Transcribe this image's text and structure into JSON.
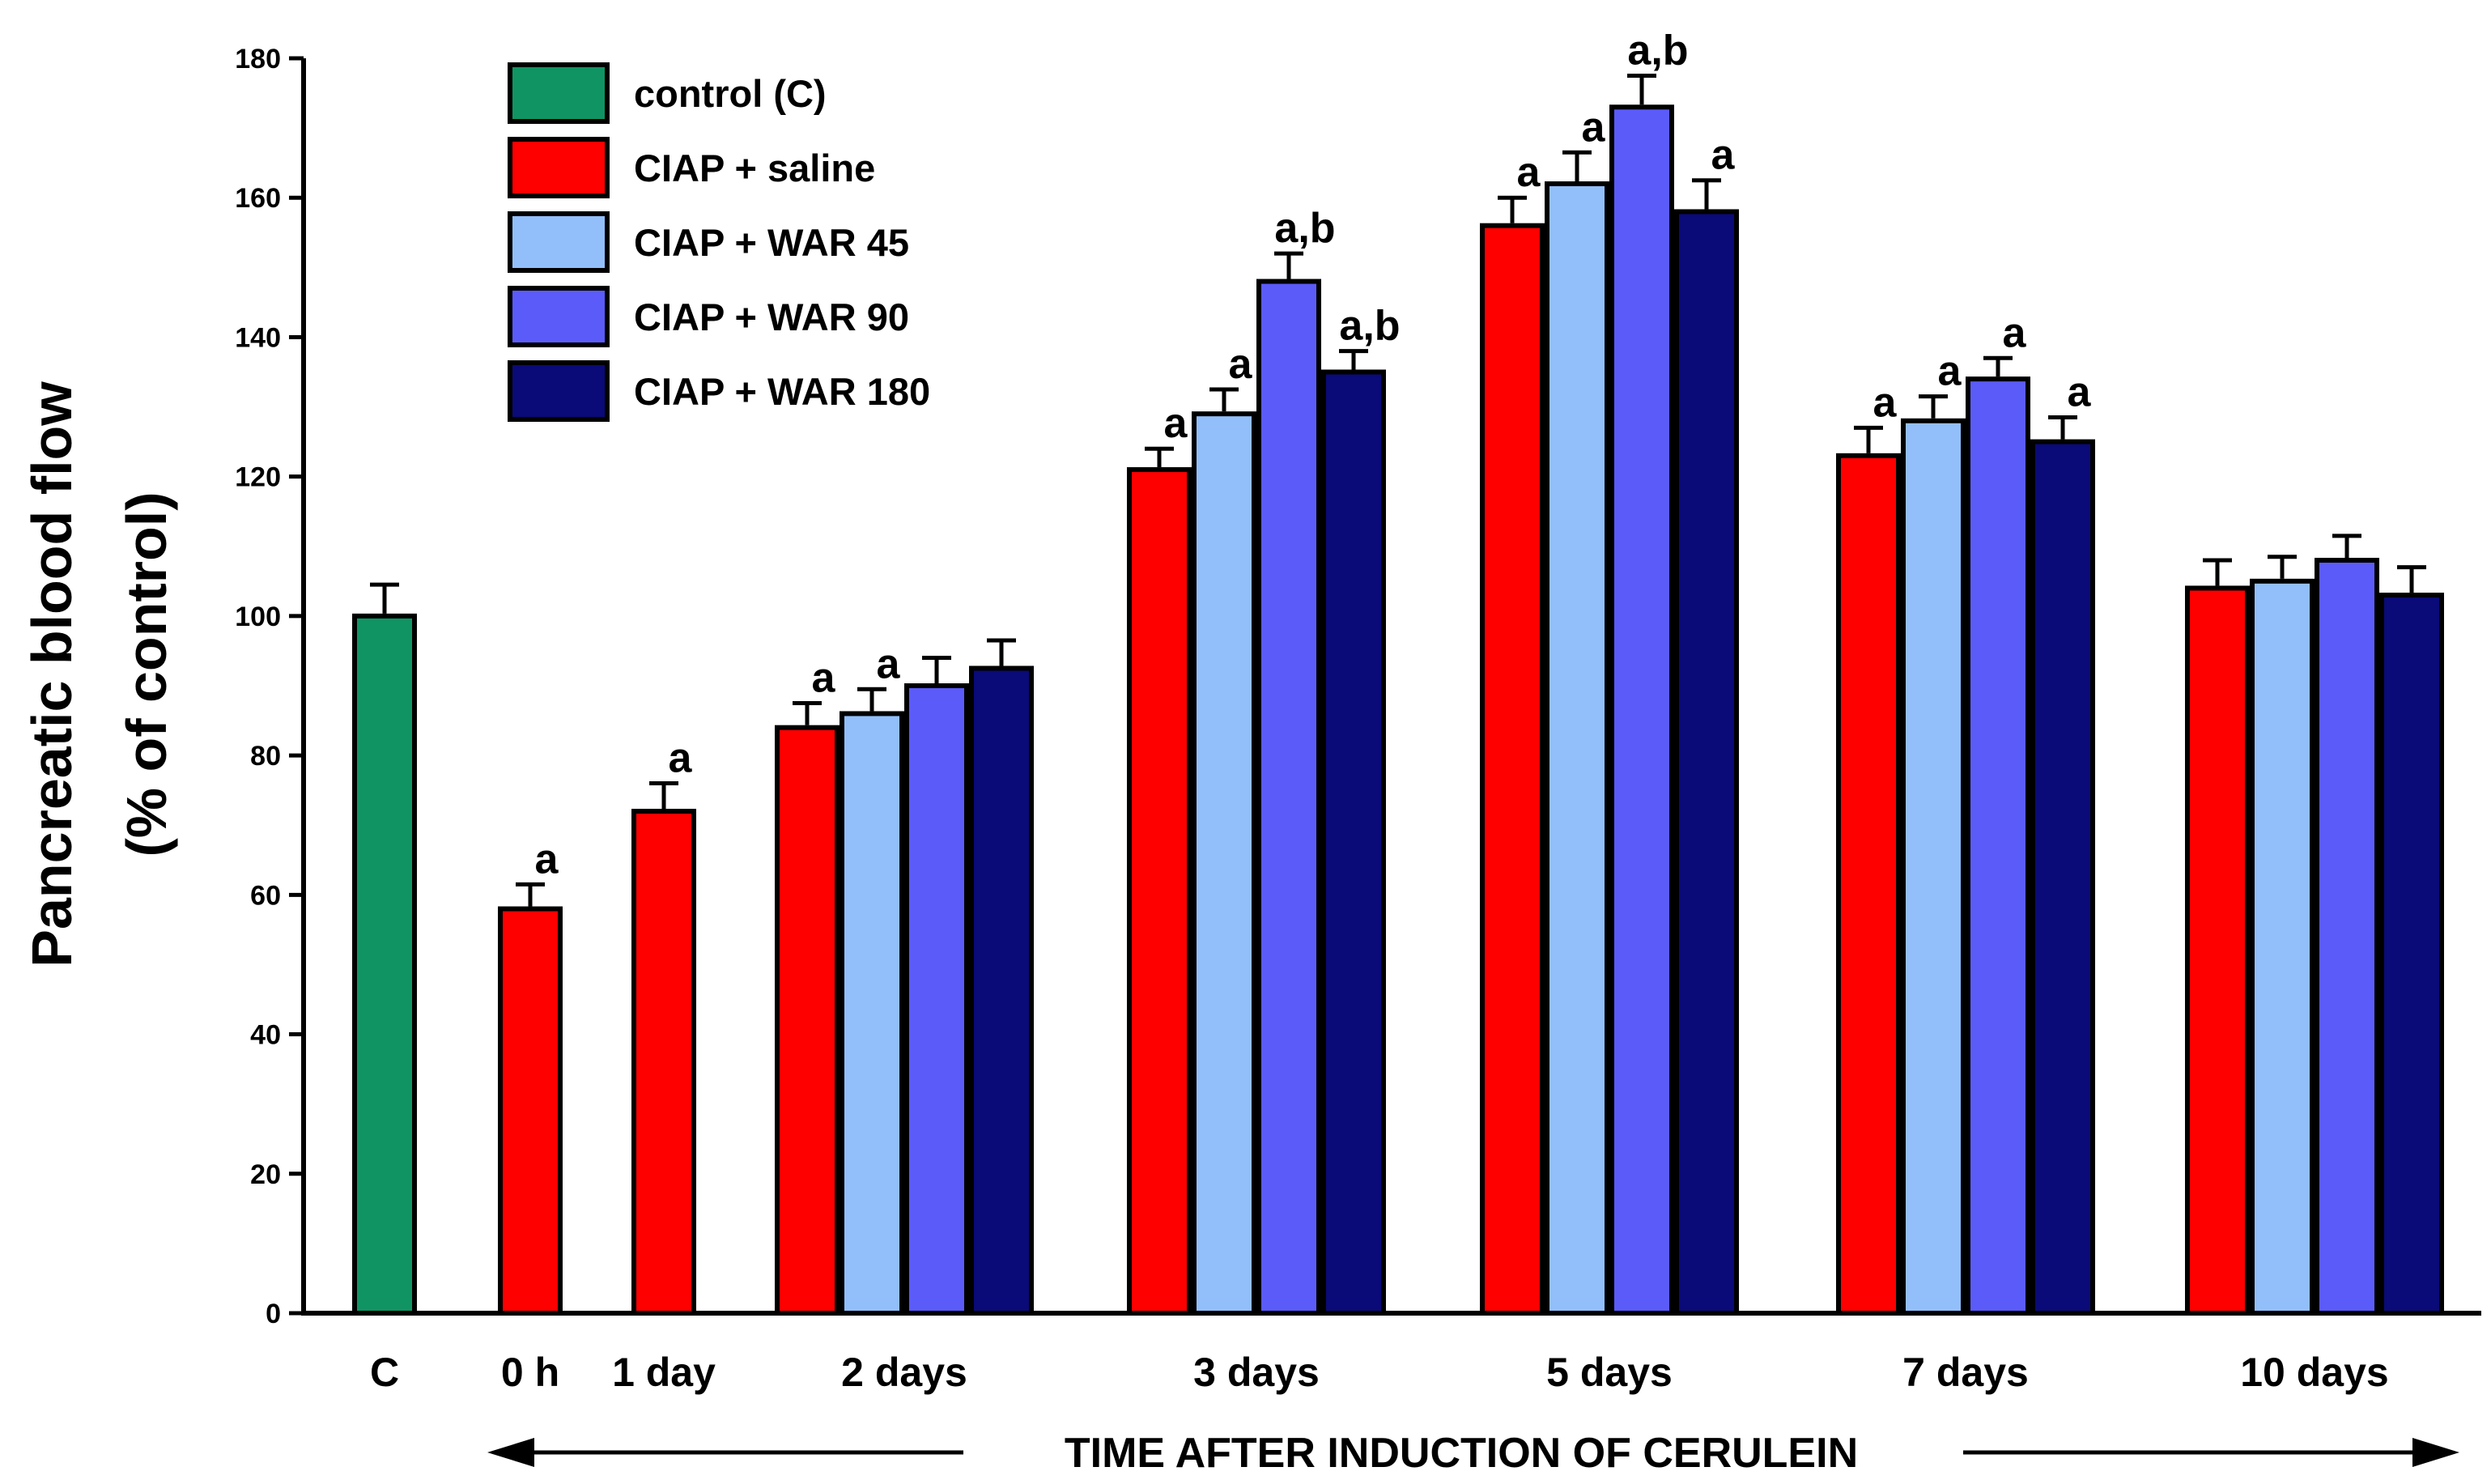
{
  "chart_data": {
    "type": "bar",
    "title": "",
    "ylabel_line1": "Pancreatic blood flow",
    "ylabel_line2": "(% of control)",
    "xlabel": "TIME AFTER INDUCTION OF CERULEIN",
    "ylim": [
      0,
      180
    ],
    "yticks": [
      "0",
      "20",
      "40",
      "60",
      "80",
      "100",
      "120",
      "140",
      "160",
      "180"
    ],
    "categories": [
      "C",
      "0 h",
      "1 day",
      "2 days",
      "3 days",
      "5 days",
      "7 days",
      "10 days"
    ],
    "series": [
      {
        "name": "control (C)",
        "color": "#109463",
        "values": [
          100,
          null,
          null,
          null,
          null,
          null,
          null,
          null
        ],
        "errors": [
          4.5,
          null,
          null,
          null,
          null,
          null,
          null,
          null
        ],
        "sig": [
          "",
          "",
          "",
          "",
          "",
          "",
          "",
          ""
        ]
      },
      {
        "name": "CIAP + saline",
        "color": "#ff0000",
        "values": [
          null,
          58,
          72,
          84,
          121,
          156,
          123,
          104
        ],
        "errors": [
          null,
          3.5,
          4,
          3.5,
          3,
          4,
          4,
          4
        ],
        "sig": [
          "",
          "a",
          "a",
          "a",
          "a",
          "a",
          "a",
          ""
        ]
      },
      {
        "name": "CIAP + WAR 45",
        "color": "#92bffa",
        "values": [
          null,
          null,
          null,
          86,
          129,
          162,
          128,
          105
        ],
        "errors": [
          null,
          null,
          null,
          3.5,
          3.5,
          4.5,
          3.5,
          3.5
        ],
        "sig": [
          "",
          "",
          "",
          "a",
          "a",
          "a",
          "a",
          ""
        ]
      },
      {
        "name": "CIAP + WAR 90",
        "color": "#5b5bfa",
        "values": [
          null,
          null,
          null,
          90,
          148,
          173,
          134,
          108
        ],
        "errors": [
          null,
          null,
          null,
          4,
          4,
          4.5,
          3,
          3.5
        ],
        "sig": [
          "",
          "",
          "",
          "",
          "a,b",
          "a,b",
          "a",
          ""
        ]
      },
      {
        "name": "CIAP + WAR 180",
        "color": "#0a0a78",
        "values": [
          null,
          null,
          null,
          92.5,
          135,
          158,
          125,
          103
        ],
        "errors": [
          null,
          null,
          null,
          4,
          3,
          4.5,
          3.5,
          4
        ],
        "sig": [
          "",
          "",
          "",
          "",
          "a,b",
          "a",
          "a",
          ""
        ]
      }
    ]
  }
}
